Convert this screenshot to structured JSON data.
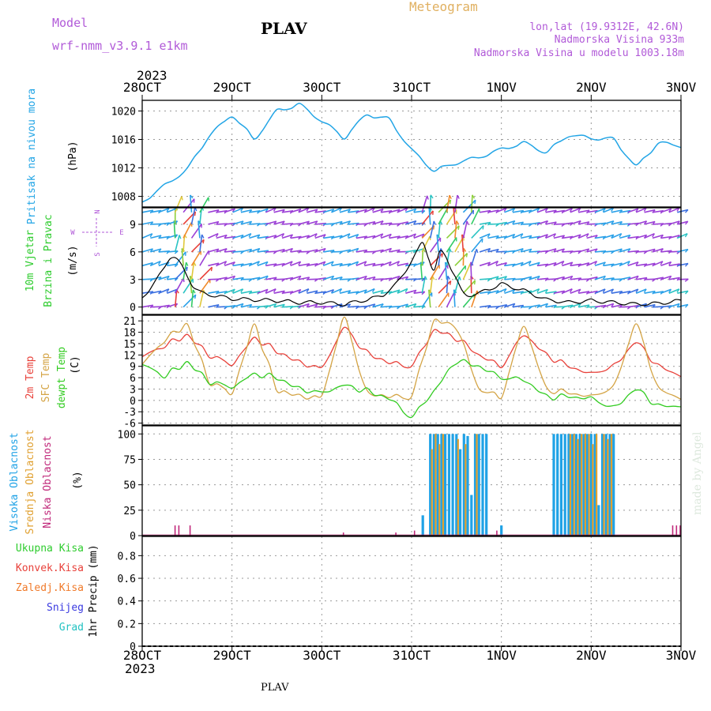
{
  "header": {
    "model_label": "Model",
    "model_name": "wrf-nmm_v3.9.1 e1km",
    "station": "PLAV",
    "meteogram": "Meteogram",
    "lonlat": "lon,lat (19.9312E, 42.6N)",
    "elevation": "Nadmorska Visina 933m",
    "elevation_model": "Nadmorska Visina u modelu 1003.18m",
    "year": "2023",
    "footer_station": "PLAV",
    "credit": "made by Angel"
  },
  "colors": {
    "pressure": "#22a5e6",
    "wind_label": "#2ecc2e",
    "speed_line": "#000000",
    "t2m": "#e8413a",
    "sfc": "#d4a445",
    "dew": "#33cc22",
    "high_cloud": "#1fa2e6",
    "mid_cloud": "#e0a030",
    "low_cloud": "#c0287a",
    "purple_text": "#b15ad8",
    "title_orange": "#e0b060"
  },
  "time_axis": {
    "labels": [
      "28OCT",
      "29OCT",
      "30OCT",
      "31OCT",
      "1NOV",
      "2NOV",
      "3NOV"
    ]
  },
  "chart_data": [
    {
      "type": "line",
      "panel": "pressure",
      "ylabel_name": "Pritisak na nivou mora",
      "ylabel_unit": "(hPa)",
      "yticks": [
        1008,
        1012,
        1016,
        1020
      ],
      "ylim": [
        1006.5,
        1021.5
      ],
      "grid": true,
      "series": [
        {
          "x": [
            0,
            6,
            12,
            18,
            24,
            30,
            36,
            42,
            48,
            54,
            60,
            66,
            72,
            78,
            84,
            90,
            96,
            102,
            108,
            114,
            120,
            126,
            132,
            138,
            144
          ],
          "values": [
            1007.2,
            1009.5,
            1011.8,
            1016.6,
            1019.4,
            1016.1,
            1020.0,
            1020.9,
            1018.6,
            1016.3,
            1019.5,
            1018.8,
            1014.5,
            1011.6,
            1012.7,
            1013.5,
            1014.6,
            1015.5,
            1014.2,
            1016.6,
            1016.2,
            1016.0,
            1012.2,
            1015.5,
            1015.1
          ]
        }
      ]
    },
    {
      "type": "line",
      "panel": "wind",
      "ylabel_name": "10m Vjetar",
      "ylabel_name2": "Brzina i Pravac",
      "ylabel_unit": "(m/s)",
      "compass": {
        "n": "N",
        "s": "S",
        "e": "E",
        "w": "W"
      },
      "yticks": [
        0,
        3,
        6,
        9
      ],
      "ylim": [
        -0.8,
        10.8
      ],
      "grid": true,
      "series": [
        {
          "name": "wind speed",
          "x": [
            0,
            4,
            8,
            11,
            14,
            16,
            20,
            24,
            30,
            36,
            42,
            48,
            54,
            60,
            64,
            68,
            72,
            75,
            78,
            80,
            84,
            86,
            90,
            96,
            102,
            108,
            114,
            120,
            126,
            132,
            138,
            144
          ],
          "values": [
            1.0,
            3.0,
            5.8,
            4.2,
            2.0,
            1.5,
            1.2,
            0.9,
            0.8,
            0.7,
            0.5,
            0.5,
            0.3,
            0.8,
            1.2,
            2.5,
            5.0,
            7.0,
            4.0,
            6.5,
            3.0,
            1.2,
            1.5,
            2.5,
            1.8,
            0.8,
            0.5,
            0.7,
            0.5,
            0.3,
            0.4,
            0.7
          ]
        }
      ]
    },
    {
      "type": "line",
      "panel": "temperature",
      "ylabel_names": [
        "2m Temp",
        "SFC Temp",
        "dewpt Temp"
      ],
      "ylabel_unit": "(C)",
      "yticks": [
        -6,
        -3,
        0,
        3,
        6,
        9,
        12,
        15,
        18,
        21
      ],
      "ylim": [
        -6.5,
        22.5
      ],
      "grid": true,
      "series": [
        {
          "name": "2m Temp",
          "x": [
            0,
            6,
            12,
            18,
            24,
            30,
            36,
            42,
            48,
            54,
            60,
            66,
            72,
            78,
            84,
            90,
            96,
            102,
            108,
            114,
            120,
            126,
            132,
            138,
            144
          ],
          "values": [
            11.5,
            14.5,
            17.2,
            12.0,
            9.5,
            16.5,
            13.0,
            10.0,
            8.5,
            19.3,
            12.5,
            10.0,
            9.0,
            18.5,
            16.5,
            12.0,
            9.0,
            17.5,
            12.0,
            9.0,
            7.0,
            9.0,
            15.5,
            9.0,
            6.5
          ]
        },
        {
          "name": "SFC Temp",
          "x": [
            0,
            6,
            12,
            18,
            24,
            30,
            36,
            42,
            48,
            54,
            60,
            66,
            72,
            78,
            84,
            90,
            96,
            102,
            108,
            114,
            120,
            126,
            132,
            138,
            144
          ],
          "values": [
            9.5,
            16.0,
            20.0,
            5.0,
            2.0,
            20.0,
            3.0,
            1.0,
            1.0,
            22.0,
            2.0,
            1.0,
            1.0,
            21.0,
            19.5,
            3.0,
            1.0,
            20.0,
            3.0,
            2.0,
            1.0,
            3.5,
            20.5,
            3.0,
            0.5
          ]
        },
        {
          "name": "dewpt Temp",
          "x": [
            0,
            6,
            12,
            18,
            24,
            30,
            36,
            42,
            48,
            54,
            60,
            66,
            72,
            78,
            84,
            90,
            96,
            102,
            108,
            114,
            120,
            126,
            132,
            138,
            144
          ],
          "values": [
            9.5,
            6.5,
            10.0,
            5.0,
            3.5,
            7.0,
            6.0,
            3.0,
            2.0,
            4.0,
            2.5,
            0.5,
            -4.5,
            2.5,
            10.5,
            9.0,
            6.0,
            5.5,
            1.0,
            1.0,
            0.5,
            -2.0,
            3.0,
            -1.5,
            -1.5
          ]
        }
      ]
    },
    {
      "type": "bar",
      "panel": "cloud",
      "ylabel_names": [
        "Visoka Oblacnost",
        "Srednja Oblacnost",
        "Niska Oblacnost"
      ],
      "ylabel_unit": "(%)",
      "yticks": [
        0,
        25,
        50,
        75,
        100
      ],
      "ylim": [
        0,
        108
      ],
      "grid": true,
      "series": [
        {
          "name": "Visoka Oblacnost",
          "x": [
            75,
            77,
            78,
            79,
            80,
            81,
            82,
            83,
            84,
            85,
            86,
            87,
            88,
            89,
            90,
            91,
            92,
            96,
            110,
            111,
            112,
            113,
            114,
            115,
            116,
            117,
            118,
            119,
            120,
            121,
            122,
            123,
            124,
            125,
            126
          ],
          "values": [
            20,
            100,
            100,
            100,
            100,
            100,
            100,
            100,
            100,
            85,
            100,
            98,
            40,
            100,
            100,
            100,
            100,
            10,
            100,
            100,
            100,
            100,
            100,
            100,
            100,
            100,
            100,
            100,
            100,
            100,
            30,
            100,
            100,
            100,
            100
          ]
        },
        {
          "name": "Srednja Oblacnost",
          "x": [
            77,
            78,
            79,
            80,
            84,
            86,
            89,
            114,
            115,
            116,
            117,
            118,
            119,
            120,
            121,
            123,
            124,
            125
          ],
          "values": [
            85,
            100,
            90,
            100,
            95,
            90,
            100,
            100,
            100,
            95,
            100,
            100,
            100,
            90,
            100,
            100,
            95,
            100
          ]
        },
        {
          "name": "Niska Oblacnost",
          "x": [
            9,
            10,
            13,
            54,
            68,
            73,
            95,
            142,
            143,
            144
          ],
          "values": [
            10,
            10,
            10,
            3,
            3,
            5,
            5,
            10,
            10,
            10
          ]
        }
      ]
    },
    {
      "type": "bar",
      "panel": "precip",
      "ylabel_unit": "1hr Precip (mm)",
      "legend": [
        "Ukupna Kisa",
        "Konvek.Kisa",
        "Zaledj.Kisa",
        "Snijeg",
        "Grad"
      ],
      "legend_colors": [
        "#2ecc2e",
        "#e8413a",
        "#f07a2a",
        "#3a3ae0",
        "#22c2c2"
      ],
      "yticks": [
        0,
        0.2,
        0.4,
        0.6,
        0.8
      ],
      "ylim": [
        0,
        0.97
      ],
      "grid": true,
      "series": []
    }
  ]
}
